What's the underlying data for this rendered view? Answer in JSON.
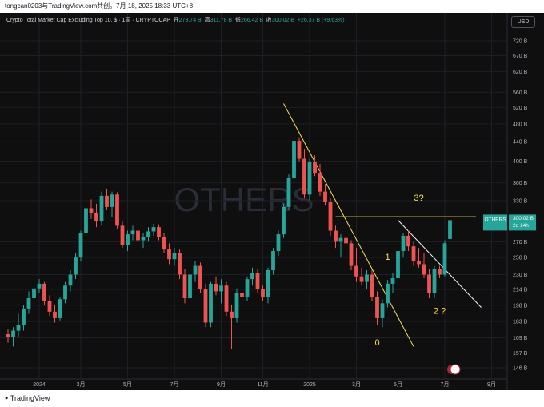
{
  "header": {
    "caption": "tongcan0203与TradingView.com共创。7月 18, 2025 18:33 UTC+8"
  },
  "legend": {
    "title": "Crypto Total Market Cap Excluding Top 10, $ · 1周 · CRYPTOCAP",
    "open_label": "开",
    "open": "273.74 B",
    "high_label": "高",
    "high": "311.78 B",
    "low_label": "低",
    "low": "266.42 B",
    "close_label": "收",
    "close": "300.02 B",
    "change": "+26.37 B (+9.63%)"
  },
  "currency": "USD",
  "watermark": "OTHERS",
  "price_tag": {
    "symbol": "OTHERS",
    "value": "300.02 B",
    "countdown": "2d 14h"
  },
  "footer": {
    "brand": "TradingView"
  },
  "colors": {
    "up": "#26a69a",
    "down": "#ef5350",
    "trendline": "#f7e14a",
    "resistance": "#ffffff",
    "background": "#0f0f0f"
  },
  "chart_data": {
    "type": "candlestick",
    "scale": "log",
    "title": "Crypto Total Market Cap Excluding Top 10, $ · 1周 · CRYPTOCAP",
    "yticks": [
      {
        "label": "720 B",
        "value": 720
      },
      {
        "label": "670 B",
        "value": 670
      },
      {
        "label": "620 B",
        "value": 620
      },
      {
        "label": "560 B",
        "value": 560
      },
      {
        "label": "520 B",
        "value": 520
      },
      {
        "label": "480 B",
        "value": 480
      },
      {
        "label": "440 B",
        "value": 440
      },
      {
        "label": "400 B",
        "value": 400
      },
      {
        "label": "360 B",
        "value": 360
      },
      {
        "label": "330 B",
        "value": 330
      },
      {
        "label": "270 B",
        "value": 270
      },
      {
        "label": "250 B",
        "value": 250
      },
      {
        "label": "230 B",
        "value": 230
      },
      {
        "label": "214 B",
        "value": 214
      },
      {
        "label": "198 B",
        "value": 198
      },
      {
        "label": "183 B",
        "value": 183
      },
      {
        "label": "169 B",
        "value": 169
      },
      {
        "label": "157 B",
        "value": 157
      },
      {
        "label": "146 B",
        "value": 146
      }
    ],
    "xticks": [
      {
        "label": "2024",
        "week": 6
      },
      {
        "label": "3月",
        "week": 14
      },
      {
        "label": "5月",
        "week": 23
      },
      {
        "label": "7月",
        "week": 32
      },
      {
        "label": "9月",
        "week": 41
      },
      {
        "label": "11月",
        "week": 49
      },
      {
        "label": "2025",
        "week": 58
      },
      {
        "label": "3月",
        "week": 67
      },
      {
        "label": "5月",
        "week": 75
      },
      {
        "label": "7月",
        "week": 84
      },
      {
        "label": "9月",
        "week": 93
      }
    ],
    "candles": [
      {
        "o": 172,
        "h": 176,
        "l": 165,
        "c": 170
      },
      {
        "o": 170,
        "h": 178,
        "l": 162,
        "c": 175
      },
      {
        "o": 175,
        "h": 190,
        "l": 170,
        "c": 180
      },
      {
        "o": 180,
        "h": 198,
        "l": 175,
        "c": 195
      },
      {
        "o": 195,
        "h": 212,
        "l": 190,
        "c": 205
      },
      {
        "o": 205,
        "h": 220,
        "l": 200,
        "c": 215
      },
      {
        "o": 215,
        "h": 225,
        "l": 210,
        "c": 220
      },
      {
        "o": 220,
        "h": 222,
        "l": 198,
        "c": 202
      },
      {
        "o": 202,
        "h": 208,
        "l": 188,
        "c": 192
      },
      {
        "o": 192,
        "h": 198,
        "l": 182,
        "c": 186
      },
      {
        "o": 186,
        "h": 206,
        "l": 184,
        "c": 204
      },
      {
        "o": 204,
        "h": 222,
        "l": 200,
        "c": 218
      },
      {
        "o": 218,
        "h": 235,
        "l": 212,
        "c": 230
      },
      {
        "o": 230,
        "h": 255,
        "l": 225,
        "c": 250
      },
      {
        "o": 250,
        "h": 285,
        "l": 245,
        "c": 282
      },
      {
        "o": 282,
        "h": 322,
        "l": 278,
        "c": 318
      },
      {
        "o": 318,
        "h": 332,
        "l": 302,
        "c": 310
      },
      {
        "o": 310,
        "h": 325,
        "l": 290,
        "c": 298
      },
      {
        "o": 298,
        "h": 345,
        "l": 292,
        "c": 338
      },
      {
        "o": 338,
        "h": 350,
        "l": 315,
        "c": 320
      },
      {
        "o": 320,
        "h": 345,
        "l": 305,
        "c": 340
      },
      {
        "o": 340,
        "h": 344,
        "l": 288,
        "c": 292
      },
      {
        "o": 292,
        "h": 298,
        "l": 262,
        "c": 266
      },
      {
        "o": 266,
        "h": 285,
        "l": 258,
        "c": 280
      },
      {
        "o": 280,
        "h": 292,
        "l": 272,
        "c": 285
      },
      {
        "o": 285,
        "h": 290,
        "l": 268,
        "c": 272
      },
      {
        "o": 272,
        "h": 282,
        "l": 262,
        "c": 276
      },
      {
        "o": 276,
        "h": 290,
        "l": 270,
        "c": 284
      },
      {
        "o": 284,
        "h": 295,
        "l": 278,
        "c": 290
      },
      {
        "o": 290,
        "h": 294,
        "l": 272,
        "c": 276
      },
      {
        "o": 276,
        "h": 282,
        "l": 255,
        "c": 260
      },
      {
        "o": 260,
        "h": 268,
        "l": 242,
        "c": 248
      },
      {
        "o": 248,
        "h": 262,
        "l": 240,
        "c": 256
      },
      {
        "o": 256,
        "h": 260,
        "l": 225,
        "c": 230
      },
      {
        "o": 230,
        "h": 236,
        "l": 200,
        "c": 205
      },
      {
        "o": 205,
        "h": 235,
        "l": 198,
        "c": 230
      },
      {
        "o": 230,
        "h": 246,
        "l": 222,
        "c": 240
      },
      {
        "o": 240,
        "h": 244,
        "l": 210,
        "c": 214
      },
      {
        "o": 214,
        "h": 220,
        "l": 178,
        "c": 182
      },
      {
        "o": 182,
        "h": 222,
        "l": 178,
        "c": 220
      },
      {
        "o": 220,
        "h": 228,
        "l": 208,
        "c": 212
      },
      {
        "o": 212,
        "h": 225,
        "l": 200,
        "c": 218
      },
      {
        "o": 218,
        "h": 222,
        "l": 188,
        "c": 192
      },
      {
        "o": 192,
        "h": 198,
        "l": 160,
        "c": 186
      },
      {
        "o": 186,
        "h": 215,
        "l": 182,
        "c": 210
      },
      {
        "o": 210,
        "h": 222,
        "l": 200,
        "c": 206
      },
      {
        "o": 206,
        "h": 228,
        "l": 202,
        "c": 225
      },
      {
        "o": 225,
        "h": 238,
        "l": 218,
        "c": 232
      },
      {
        "o": 232,
        "h": 236,
        "l": 210,
        "c": 214
      },
      {
        "o": 214,
        "h": 218,
        "l": 202,
        "c": 206
      },
      {
        "o": 206,
        "h": 238,
        "l": 200,
        "c": 235
      },
      {
        "o": 235,
        "h": 262,
        "l": 230,
        "c": 258
      },
      {
        "o": 258,
        "h": 285,
        "l": 252,
        "c": 280
      },
      {
        "o": 280,
        "h": 325,
        "l": 275,
        "c": 320
      },
      {
        "o": 320,
        "h": 375,
        "l": 315,
        "c": 368
      },
      {
        "o": 368,
        "h": 448,
        "l": 362,
        "c": 442
      },
      {
        "o": 442,
        "h": 450,
        "l": 400,
        "c": 405
      },
      {
        "o": 405,
        "h": 425,
        "l": 335,
        "c": 340
      },
      {
        "o": 340,
        "h": 405,
        "l": 330,
        "c": 398
      },
      {
        "o": 398,
        "h": 412,
        "l": 372,
        "c": 378
      },
      {
        "o": 378,
        "h": 395,
        "l": 338,
        "c": 345
      },
      {
        "o": 345,
        "h": 358,
        "l": 322,
        "c": 328
      },
      {
        "o": 328,
        "h": 335,
        "l": 278,
        "c": 285
      },
      {
        "o": 285,
        "h": 292,
        "l": 262,
        "c": 270
      },
      {
        "o": 270,
        "h": 280,
        "l": 250,
        "c": 275
      },
      {
        "o": 275,
        "h": 282,
        "l": 262,
        "c": 268
      },
      {
        "o": 268,
        "h": 272,
        "l": 235,
        "c": 240
      },
      {
        "o": 240,
        "h": 262,
        "l": 222,
        "c": 228
      },
      {
        "o": 228,
        "h": 238,
        "l": 218,
        "c": 222
      },
      {
        "o": 222,
        "h": 235,
        "l": 214,
        "c": 230
      },
      {
        "o": 230,
        "h": 236,
        "l": 202,
        "c": 206
      },
      {
        "o": 206,
        "h": 212,
        "l": 180,
        "c": 186
      },
      {
        "o": 186,
        "h": 204,
        "l": 178,
        "c": 200
      },
      {
        "o": 200,
        "h": 224,
        "l": 196,
        "c": 220
      },
      {
        "o": 220,
        "h": 232,
        "l": 210,
        "c": 226
      },
      {
        "o": 226,
        "h": 262,
        "l": 220,
        "c": 258
      },
      {
        "o": 258,
        "h": 282,
        "l": 250,
        "c": 278
      },
      {
        "o": 278,
        "h": 285,
        "l": 258,
        "c": 264
      },
      {
        "o": 264,
        "h": 270,
        "l": 240,
        "c": 246
      },
      {
        "o": 246,
        "h": 262,
        "l": 238,
        "c": 242
      },
      {
        "o": 242,
        "h": 255,
        "l": 226,
        "c": 230
      },
      {
        "o": 230,
        "h": 236,
        "l": 205,
        "c": 210
      },
      {
        "o": 210,
        "h": 240,
        "l": 205,
        "c": 236
      },
      {
        "o": 236,
        "h": 240,
        "l": 226,
        "c": 230
      },
      {
        "o": 230,
        "h": 272,
        "l": 228,
        "c": 268
      },
      {
        "o": 273.74,
        "h": 311.78,
        "l": 266.42,
        "c": 300.02
      }
    ],
    "lines": [
      {
        "name": "yellow-descending-trendline",
        "from": {
          "week": 53,
          "price": 530
        },
        "to": {
          "week": 78,
          "price": 162
        }
      },
      {
        "name": "horizontal-resistance",
        "from": {
          "week": 63,
          "price": 305
        },
        "to": {
          "week": 90,
          "price": 305
        }
      },
      {
        "name": "white-descending-line",
        "from": {
          "week": 75,
          "price": 300
        },
        "to": {
          "week": 91,
          "price": 196
        }
      }
    ],
    "annotations": [
      {
        "text": "0",
        "week": 71,
        "price": 163
      },
      {
        "text": "1",
        "week": 73,
        "price": 247
      },
      {
        "text": "2 ?",
        "week": 83,
        "price": 190
      },
      {
        "text": "3?",
        "week": 79,
        "price": 330
      }
    ]
  }
}
